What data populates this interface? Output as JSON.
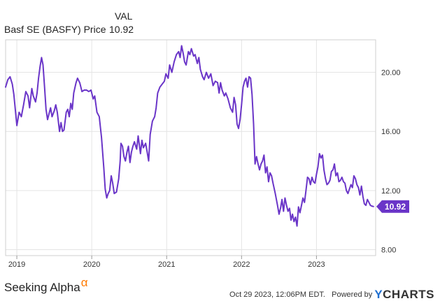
{
  "legend": {
    "header": "VAL",
    "series_label": "Basf SE (BASFY) Price",
    "series_value": "10.92"
  },
  "chart_data": {
    "type": "line",
    "title": "Basf SE (BASFY) Price",
    "series": [
      {
        "name": "Basf SE (BASFY) Price",
        "color": "#6a35c8",
        "last_value": "10.92",
        "points": [
          [
            2018.85,
            19.0
          ],
          [
            2018.88,
            19.5
          ],
          [
            2018.91,
            19.7
          ],
          [
            2018.94,
            19.2
          ],
          [
            2018.96,
            18.5
          ],
          [
            2019.0,
            16.4
          ],
          [
            2019.03,
            17.3
          ],
          [
            2019.06,
            17.0
          ],
          [
            2019.09,
            17.8
          ],
          [
            2019.12,
            18.7
          ],
          [
            2019.15,
            18.4
          ],
          [
            2019.17,
            17.6
          ],
          [
            2019.2,
            18.9
          ],
          [
            2019.22,
            18.4
          ],
          [
            2019.25,
            18.0
          ],
          [
            2019.27,
            18.6
          ],
          [
            2019.29,
            19.6
          ],
          [
            2019.31,
            20.4
          ],
          [
            2019.33,
            21.0
          ],
          [
            2019.35,
            20.5
          ],
          [
            2019.37,
            19.0
          ],
          [
            2019.39,
            17.5
          ],
          [
            2019.41,
            16.8
          ],
          [
            2019.43,
            17.2
          ],
          [
            2019.45,
            17.6
          ],
          [
            2019.47,
            17.0
          ],
          [
            2019.5,
            17.4
          ],
          [
            2019.52,
            17.8
          ],
          [
            2019.54,
            17.3
          ],
          [
            2019.57,
            16.0
          ],
          [
            2019.59,
            16.6
          ],
          [
            2019.61,
            16.0
          ],
          [
            2019.63,
            16.1
          ],
          [
            2019.66,
            17.3
          ],
          [
            2019.68,
            17.5
          ],
          [
            2019.7,
            17.0
          ],
          [
            2019.72,
            17.9
          ],
          [
            2019.74,
            17.5
          ],
          [
            2019.76,
            18.6
          ],
          [
            2019.79,
            19.3
          ],
          [
            2019.81,
            19.6
          ],
          [
            2019.84,
            19.3
          ],
          [
            2019.87,
            18.7
          ],
          [
            2019.9,
            18.8
          ],
          [
            2019.93,
            18.8
          ],
          [
            2019.96,
            18.7
          ],
          [
            2019.99,
            18.8
          ],
          [
            2020.02,
            18.2
          ],
          [
            2020.04,
            18.4
          ],
          [
            2020.07,
            17.3
          ],
          [
            2020.1,
            17.0
          ],
          [
            2020.13,
            15.6
          ],
          [
            2020.16,
            13.6
          ],
          [
            2020.18,
            12.1
          ],
          [
            2020.2,
            11.5
          ],
          [
            2020.22,
            11.8
          ],
          [
            2020.24,
            12.0
          ],
          [
            2020.26,
            13.0
          ],
          [
            2020.28,
            12.5
          ],
          [
            2020.3,
            11.8
          ],
          [
            2020.33,
            11.9
          ],
          [
            2020.36,
            12.8
          ],
          [
            2020.38,
            14.0
          ],
          [
            2020.39,
            15.2
          ],
          [
            2020.41,
            15.0
          ],
          [
            2020.43,
            14.3
          ],
          [
            2020.45,
            14.0
          ],
          [
            2020.47,
            14.6
          ],
          [
            2020.49,
            15.0
          ],
          [
            2020.51,
            13.9
          ],
          [
            2020.53,
            14.6
          ],
          [
            2020.55,
            15.0
          ],
          [
            2020.57,
            15.3
          ],
          [
            2020.6,
            14.8
          ],
          [
            2020.62,
            15.7
          ],
          [
            2020.65,
            14.5
          ],
          [
            2020.67,
            15.4
          ],
          [
            2020.69,
            14.9
          ],
          [
            2020.72,
            15.2
          ],
          [
            2020.74,
            14.6
          ],
          [
            2020.76,
            14.0
          ],
          [
            2020.78,
            15.8
          ],
          [
            2020.81,
            16.7
          ],
          [
            2020.84,
            17.0
          ],
          [
            2020.86,
            17.6
          ],
          [
            2020.88,
            18.6
          ],
          [
            2020.91,
            19.0
          ],
          [
            2020.94,
            19.2
          ],
          [
            2020.97,
            19.4
          ],
          [
            2020.99,
            19.9
          ],
          [
            2021.02,
            19.6
          ],
          [
            2021.04,
            20.5
          ],
          [
            2021.07,
            20.0
          ],
          [
            2021.1,
            20.7
          ],
          [
            2021.13,
            21.2
          ],
          [
            2021.16,
            21.4
          ],
          [
            2021.18,
            21.0
          ],
          [
            2021.2,
            21.8
          ],
          [
            2021.22,
            21.3
          ],
          [
            2021.24,
            20.7
          ],
          [
            2021.26,
            20.5
          ],
          [
            2021.29,
            21.4
          ],
          [
            2021.31,
            21.2
          ],
          [
            2021.33,
            21.6
          ],
          [
            2021.36,
            21.1
          ],
          [
            2021.38,
            21.2
          ],
          [
            2021.41,
            20.6
          ],
          [
            2021.43,
            21.0
          ],
          [
            2021.45,
            20.2
          ],
          [
            2021.48,
            19.7
          ],
          [
            2021.5,
            19.5
          ],
          [
            2021.53,
            20.0
          ],
          [
            2021.56,
            19.6
          ],
          [
            2021.59,
            19.9
          ],
          [
            2021.62,
            19.1
          ],
          [
            2021.65,
            19.4
          ],
          [
            2021.68,
            19.3
          ],
          [
            2021.7,
            18.6
          ],
          [
            2021.72,
            19.3
          ],
          [
            2021.74,
            18.8
          ],
          [
            2021.77,
            18.4
          ],
          [
            2021.79,
            18.6
          ],
          [
            2021.82,
            18.2
          ],
          [
            2021.85,
            17.6
          ],
          [
            2021.88,
            17.3
          ],
          [
            2021.9,
            18.3
          ],
          [
            2021.92,
            17.8
          ],
          [
            2021.94,
            16.5
          ],
          [
            2021.96,
            16.2
          ],
          [
            2021.98,
            16.8
          ],
          [
            2022.0,
            17.8
          ],
          [
            2022.02,
            19.0
          ],
          [
            2022.04,
            19.4
          ],
          [
            2022.06,
            19.6
          ],
          [
            2022.08,
            19.0
          ],
          [
            2022.1,
            19.7
          ],
          [
            2022.12,
            19.6
          ],
          [
            2022.14,
            18.5
          ],
          [
            2022.16,
            16.5
          ],
          [
            2022.18,
            13.8
          ],
          [
            2022.2,
            14.3
          ],
          [
            2022.22,
            13.8
          ],
          [
            2022.24,
            13.4
          ],
          [
            2022.26,
            13.8
          ],
          [
            2022.28,
            14.0
          ],
          [
            2022.3,
            14.4
          ],
          [
            2022.32,
            13.2
          ],
          [
            2022.34,
            13.6
          ],
          [
            2022.36,
            12.6
          ],
          [
            2022.38,
            13.2
          ],
          [
            2022.4,
            13.0
          ],
          [
            2022.42,
            12.5
          ],
          [
            2022.45,
            11.8
          ],
          [
            2022.48,
            11.0
          ],
          [
            2022.5,
            10.4
          ],
          [
            2022.52,
            10.8
          ],
          [
            2022.54,
            11.4
          ],
          [
            2022.56,
            10.6
          ],
          [
            2022.58,
            11.5
          ],
          [
            2022.6,
            11.0
          ],
          [
            2022.62,
            10.6
          ],
          [
            2022.64,
            10.8
          ],
          [
            2022.66,
            10.0
          ],
          [
            2022.68,
            10.4
          ],
          [
            2022.7,
            9.9
          ],
          [
            2022.72,
            10.2
          ],
          [
            2022.74,
            9.6
          ],
          [
            2022.76,
            10.9
          ],
          [
            2022.78,
            10.5
          ],
          [
            2022.8,
            11.0
          ],
          [
            2022.82,
            11.5
          ],
          [
            2022.84,
            11.2
          ],
          [
            2022.86,
            12.0
          ],
          [
            2022.88,
            12.9
          ],
          [
            2022.9,
            12.8
          ],
          [
            2022.92,
            12.4
          ],
          [
            2022.94,
            12.9
          ],
          [
            2022.96,
            12.6
          ],
          [
            2022.98,
            12.5
          ],
          [
            2023.0,
            13.1
          ],
          [
            2023.02,
            13.6
          ],
          [
            2023.04,
            14.5
          ],
          [
            2023.06,
            14.2
          ],
          [
            2023.08,
            14.4
          ],
          [
            2023.1,
            13.4
          ],
          [
            2023.12,
            12.8
          ],
          [
            2023.14,
            12.4
          ],
          [
            2023.16,
            12.5
          ],
          [
            2023.18,
            12.7
          ],
          [
            2023.2,
            13.3
          ],
          [
            2023.22,
            13.4
          ],
          [
            2023.24,
            13.8
          ],
          [
            2023.26,
            13.0
          ],
          [
            2023.28,
            13.2
          ],
          [
            2023.3,
            12.6
          ],
          [
            2023.32,
            12.7
          ],
          [
            2023.34,
            12.9
          ],
          [
            2023.36,
            12.6
          ],
          [
            2023.38,
            12.5
          ],
          [
            2023.4,
            12.0
          ],
          [
            2023.42,
            11.8
          ],
          [
            2023.44,
            12.1
          ],
          [
            2023.46,
            12.4
          ],
          [
            2023.48,
            12.2
          ],
          [
            2023.5,
            13.0
          ],
          [
            2023.52,
            12.8
          ],
          [
            2023.54,
            12.4
          ],
          [
            2023.56,
            12.2
          ],
          [
            2023.58,
            11.7
          ],
          [
            2023.6,
            12.3
          ],
          [
            2023.62,
            11.6
          ],
          [
            2023.64,
            11.1
          ],
          [
            2023.66,
            11.0
          ],
          [
            2023.68,
            11.4
          ],
          [
            2023.7,
            11.2
          ],
          [
            2023.72,
            11.0
          ],
          [
            2023.74,
            10.95
          ],
          [
            2023.76,
            10.92
          ]
        ]
      }
    ],
    "xlim": [
      2018.85,
      2023.79
    ],
    "ylim": [
      7.6,
      22.2
    ],
    "x_ticks": [
      {
        "value": 2019,
        "label": "2019"
      },
      {
        "value": 2020,
        "label": "2020"
      },
      {
        "value": 2021,
        "label": "2021"
      },
      {
        "value": 2022,
        "label": "2022"
      },
      {
        "value": 2023,
        "label": "2023"
      }
    ],
    "y_ticks": [
      {
        "value": 8,
        "label": "8.00"
      },
      {
        "value": 12,
        "label": "12.00"
      },
      {
        "value": 16,
        "label": "16.00"
      },
      {
        "value": 20,
        "label": "20.00"
      }
    ],
    "grid": true,
    "last_value_label": "10.92"
  },
  "footer": {
    "brand": "Seeking Alpha",
    "brand_symbol": "α",
    "timestamp": "Oct 29 2023, 12:06PM EDT.",
    "powered_by": "Powered by",
    "ycharts_y": "Y",
    "ycharts_rest": "CHARTS"
  }
}
